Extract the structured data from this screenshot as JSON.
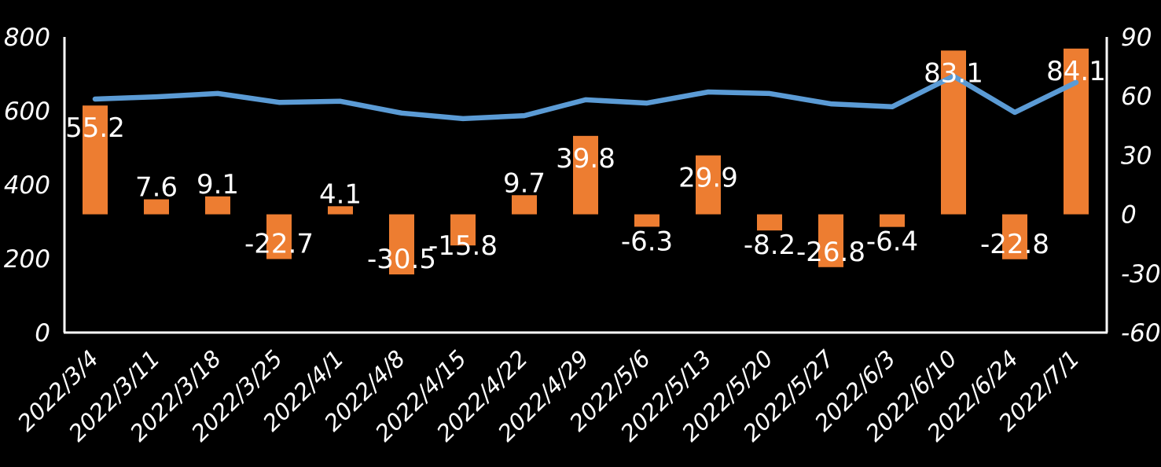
{
  "chart_data": {
    "type": "bar",
    "subtype": "combo clustered-bar + line, dual value axes, black background",
    "title": "",
    "xlabel": "",
    "ylabel": "",
    "legend": "none",
    "grid": false,
    "background_color": "#000000",
    "text_color": "#ffffff",
    "axis_line_color": "#ffffff",
    "categories": [
      "2022/3/4",
      "2022/3/11",
      "2022/3/18",
      "2022/3/25",
      "2022/4/1",
      "2022/4/8",
      "2022/4/15",
      "2022/4/22",
      "2022/4/29",
      "2022/5/6",
      "2022/5/13",
      "2022/5/20",
      "2022/5/27",
      "2022/6/3",
      "2022/6/10",
      "2022/6/24",
      "2022/7/1"
    ],
    "series": [
      {
        "name": "bars",
        "type": "bar",
        "axis": "right",
        "color": "#ED7D31",
        "data_labels_shown": true,
        "values": [
          55.2,
          7.6,
          9.1,
          -22.7,
          4.1,
          -30.5,
          -15.8,
          9.7,
          39.8,
          -6.3,
          29.9,
          -8.2,
          -26.8,
          -6.4,
          83.1,
          -22.8,
          84.1
        ]
      },
      {
        "name": "line",
        "type": "line",
        "axis": "left",
        "color": "#5B9BD5",
        "data_labels_shown": false,
        "values": [
          632,
          638,
          647,
          623,
          626,
          594,
          579,
          587,
          630,
          621,
          651,
          647,
          619,
          611,
          694,
          596,
          677
        ]
      }
    ],
    "left_axis": {
      "min": 0,
      "max": 800,
      "ticks": [
        800,
        600,
        400,
        200,
        0
      ]
    },
    "right_axis": {
      "min": -60,
      "max": 90,
      "ticks": [
        90,
        60,
        30,
        0,
        -30,
        -60
      ]
    }
  }
}
